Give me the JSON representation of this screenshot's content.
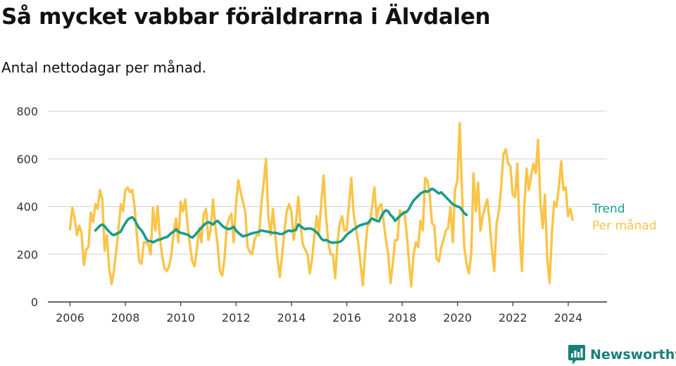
{
  "title": "Så mycket vabbar föräldrarna i Älvdalen",
  "subtitle": "Antal nettodagar per månad.",
  "brand": {
    "name": "Newsworthy",
    "icon": "newsworthy-logo-icon"
  },
  "colors": {
    "trend": "#1a9b8c",
    "monthly": "#f9c448",
    "grid": "#d9d9d9",
    "axis": "#333333",
    "brand": "#17807a"
  },
  "chart_data": {
    "type": "line",
    "title": "Så mycket vabbar föräldrarna i Älvdalen",
    "subtitle": "Antal nettodagar per månad.",
    "xlabel": "",
    "ylabel": "",
    "xlim": [
      2005.2,
      2025.4
    ],
    "ylim": [
      0,
      800
    ],
    "grid": true,
    "legend": "right",
    "x_ticks": [
      2006,
      2008,
      2010,
      2012,
      2014,
      2016,
      2018,
      2020,
      2022,
      2024
    ],
    "y_ticks": [
      0,
      200,
      400,
      600,
      800
    ],
    "series": [
      {
        "name": "Trend",
        "color": "#1a9b8c",
        "x_start": 2006.9167,
        "step": 0.0833,
        "values": [
          300,
          310,
          320,
          325,
          318,
          305,
          295,
          285,
          280,
          285,
          290,
          295,
          315,
          330,
          345,
          352,
          355,
          345,
          325,
          310,
          300,
          285,
          265,
          255,
          255,
          250,
          255,
          260,
          262,
          265,
          270,
          272,
          280,
          290,
          295,
          305,
          295,
          290,
          288,
          285,
          282,
          275,
          270,
          278,
          290,
          300,
          312,
          322,
          330,
          335,
          330,
          325,
          335,
          340,
          330,
          320,
          312,
          308,
          305,
          310,
          315,
          300,
          290,
          282,
          275,
          278,
          280,
          285,
          288,
          290,
          292,
          296,
          300,
          298,
          296,
          294,
          292,
          290,
          290,
          288,
          285,
          285,
          290,
          296,
          300,
          296,
          300,
          302,
          325,
          318,
          310,
          305,
          308,
          308,
          306,
          300,
          292,
          280,
          265,
          258,
          260,
          255,
          250,
          248,
          250,
          250,
          252,
          258,
          270,
          282,
          290,
          296,
          305,
          310,
          318,
          322,
          325,
          328,
          330,
          340,
          350,
          345,
          340,
          338,
          360,
          375,
          385,
          380,
          365,
          355,
          340,
          350,
          360,
          368,
          375,
          378,
          390,
          410,
          425,
          435,
          445,
          455,
          460,
          465,
          462,
          468,
          475,
          470,
          462,
          455,
          460,
          450,
          440,
          430,
          420,
          410,
          405,
          400,
          398,
          385,
          372,
          365
        ]
      },
      {
        "name": "Per månad",
        "color": "#f9c448",
        "x_start": 2006.0,
        "step": 0.0833,
        "values": [
          305,
          395,
          350,
          280,
          320,
          290,
          155,
          220,
          230,
          375,
          335,
          410,
          390,
          470,
          430,
          215,
          280,
          140,
          75,
          130,
          210,
          300,
          410,
          380,
          470,
          480,
          460,
          470,
          400,
          280,
          170,
          160,
          250,
          250,
          240,
          200,
          395,
          300,
          400,
          270,
          190,
          140,
          130,
          150,
          200,
          300,
          350,
          250,
          420,
          380,
          430,
          320,
          240,
          170,
          150,
          220,
          310,
          250,
          370,
          390,
          260,
          300,
          430,
          320,
          240,
          130,
          110,
          180,
          320,
          350,
          370,
          250,
          410,
          510,
          460,
          420,
          380,
          230,
          210,
          200,
          260,
          280,
          280,
          410,
          500,
          600,
          360,
          280,
          390,
          280,
          180,
          105,
          200,
          300,
          380,
          410,
          380,
          260,
          330,
          440,
          320,
          240,
          220,
          200,
          120,
          180,
          280,
          360,
          290,
          420,
          530,
          360,
          250,
          200,
          200,
          100,
          250,
          330,
          360,
          300,
          300,
          410,
          520,
          370,
          310,
          250,
          160,
          70,
          210,
          320,
          330,
          400,
          480,
          350,
          400,
          410,
          340,
          260,
          200,
          80,
          160,
          260,
          260,
          385,
          370,
          380,
          290,
          170,
          65,
          200,
          250,
          230,
          340,
          300,
          520,
          510,
          450,
          330,
          320,
          180,
          170,
          230,
          260,
          300,
          310,
          400,
          250,
          470,
          510,
          750,
          460,
          230,
          160,
          120,
          200,
          540,
          380,
          500,
          300,
          360,
          400,
          430,
          330,
          220,
          130,
          330,
          380,
          480,
          620,
          640,
          580,
          570,
          450,
          440,
          580,
          290,
          130,
          400,
          560,
          470,
          530,
          580,
          540,
          680,
          420,
          310,
          450,
          180,
          80,
          290,
          420,
          400,
          480,
          590,
          470,
          480,
          360,
          390,
          345
        ]
      }
    ]
  }
}
